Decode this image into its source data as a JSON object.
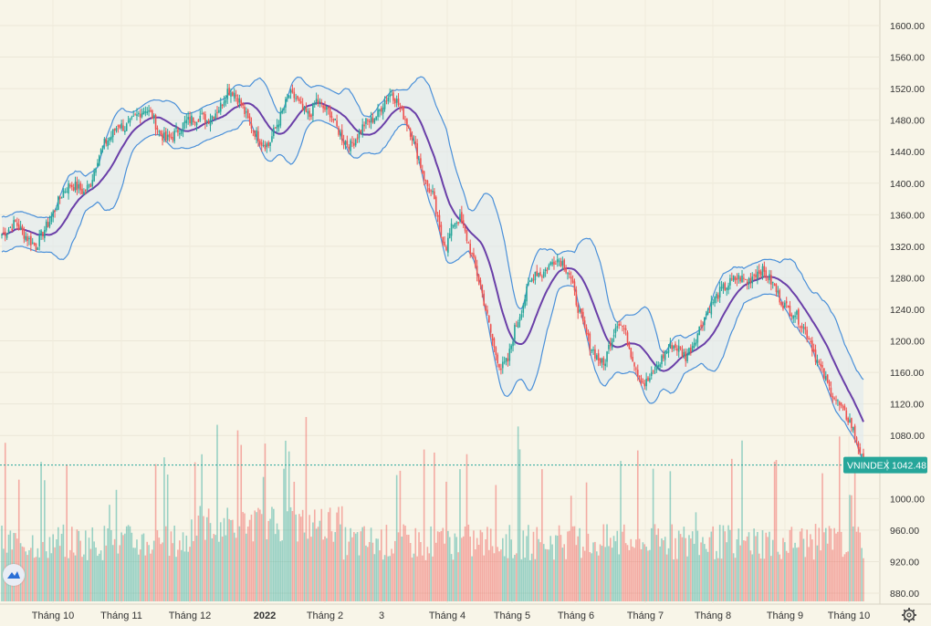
{
  "chart_data": {
    "type": "candlestick",
    "symbol": "VNINDEX",
    "last_price_label": "1042.48",
    "last_price": 1042.48,
    "y_axis": {
      "range": [
        875,
        1625
      ],
      "ticks": [
        "1600.00",
        "1560.00",
        "1520.00",
        "1480.00",
        "1440.00",
        "1400.00",
        "1360.00",
        "1320.00",
        "1280.00",
        "1240.00",
        "1200.00",
        "1160.00",
        "1120.00",
        "1080.00",
        "1000.00",
        "960.00",
        "920.00",
        "880.00"
      ]
    },
    "x_axis": {
      "ticks": [
        {
          "label": "Tháng 10",
          "bold": false
        },
        {
          "label": "Tháng 11",
          "bold": false
        },
        {
          "label": "Tháng 12",
          "bold": false
        },
        {
          "label": "2022",
          "bold": true
        },
        {
          "label": "Tháng 2",
          "bold": false
        },
        {
          "label": "3",
          "bold": false
        },
        {
          "label": "Tháng 4",
          "bold": false
        },
        {
          "label": "Tháng 5",
          "bold": false
        },
        {
          "label": "Tháng 6",
          "bold": false
        },
        {
          "label": "Tháng 7",
          "bold": false
        },
        {
          "label": "Tháng 8",
          "bold": false
        },
        {
          "label": "Tháng 9",
          "bold": false
        },
        {
          "label": "Tháng 10",
          "bold": false
        }
      ]
    },
    "close_series": [
      1335,
      1342,
      1350,
      1338,
      1328,
      1320,
      1338,
      1352,
      1372,
      1390,
      1398,
      1395,
      1388,
      1400,
      1432,
      1450,
      1460,
      1475,
      1470,
      1478,
      1488,
      1495,
      1485,
      1465,
      1455,
      1460,
      1470,
      1478,
      1482,
      1485,
      1480,
      1488,
      1498,
      1518,
      1515,
      1500,
      1480,
      1465,
      1452,
      1448,
      1470,
      1490,
      1512,
      1508,
      1492,
      1485,
      1505,
      1495,
      1490,
      1470,
      1455,
      1448,
      1460,
      1475,
      1480,
      1488,
      1505,
      1515,
      1500,
      1482,
      1460,
      1430,
      1400,
      1385,
      1340,
      1320,
      1350,
      1355,
      1330,
      1300,
      1270,
      1230,
      1190,
      1165,
      1175,
      1215,
      1240,
      1270,
      1288,
      1285,
      1295,
      1305,
      1300,
      1285,
      1250,
      1220,
      1195,
      1180,
      1168,
      1200,
      1225,
      1215,
      1185,
      1160,
      1145,
      1155,
      1170,
      1185,
      1195,
      1190,
      1180,
      1195,
      1215,
      1235,
      1250,
      1262,
      1270,
      1278,
      1280,
      1275,
      1285,
      1290,
      1282,
      1268,
      1250,
      1240,
      1235,
      1220,
      1205,
      1180,
      1160,
      1140,
      1125,
      1110,
      1098,
      1075,
      1042.48
    ],
    "volume_range": [
      0,
      1
    ],
    "band_upper_color": "#4a90d9",
    "mid_band_color": "#6a3fa8",
    "up_color": "#26a69a",
    "down_color": "#ef5350",
    "band_fill_color": "#dfe9ef"
  },
  "logo_icon": "tradingview-logo-icon",
  "settings_icon": "gear-icon"
}
